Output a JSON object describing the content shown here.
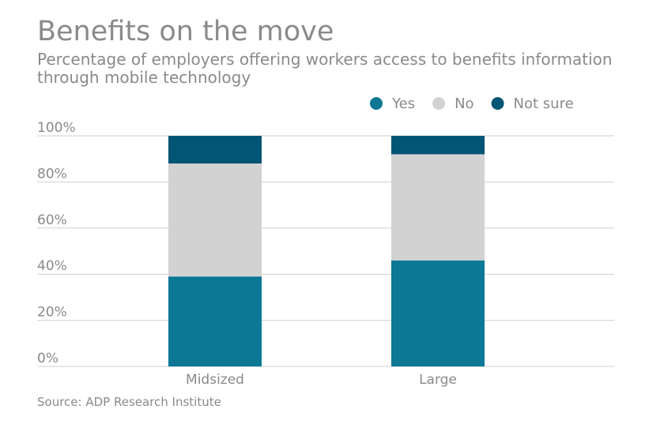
{
  "colors": {
    "Yes": "#0c7896",
    "No": "#d3d2d3",
    "Not sure": "#025574",
    "grid": "#cfcfcf",
    "text": "#8a8a8a"
  },
  "source": "Source: ADP Research Institute",
  "chart_data": {
    "type": "bar",
    "stacked": true,
    "title": "Benefits on the move",
    "subtitle": "Percentage of employers offering workers access to benefits information through mobile technology",
    "categories": [
      "Midsized",
      "Large"
    ],
    "series": [
      {
        "name": "Yes",
        "values": [
          39,
          46
        ]
      },
      {
        "name": "No",
        "values": [
          49,
          46
        ]
      },
      {
        "name": "Not sure",
        "values": [
          12,
          8
        ]
      }
    ],
    "ylim": [
      0,
      100
    ],
    "yticks": [
      "0%",
      "20%",
      "40%",
      "60%",
      "80%",
      "100%"
    ],
    "legend": "top-right",
    "grid": true
  }
}
